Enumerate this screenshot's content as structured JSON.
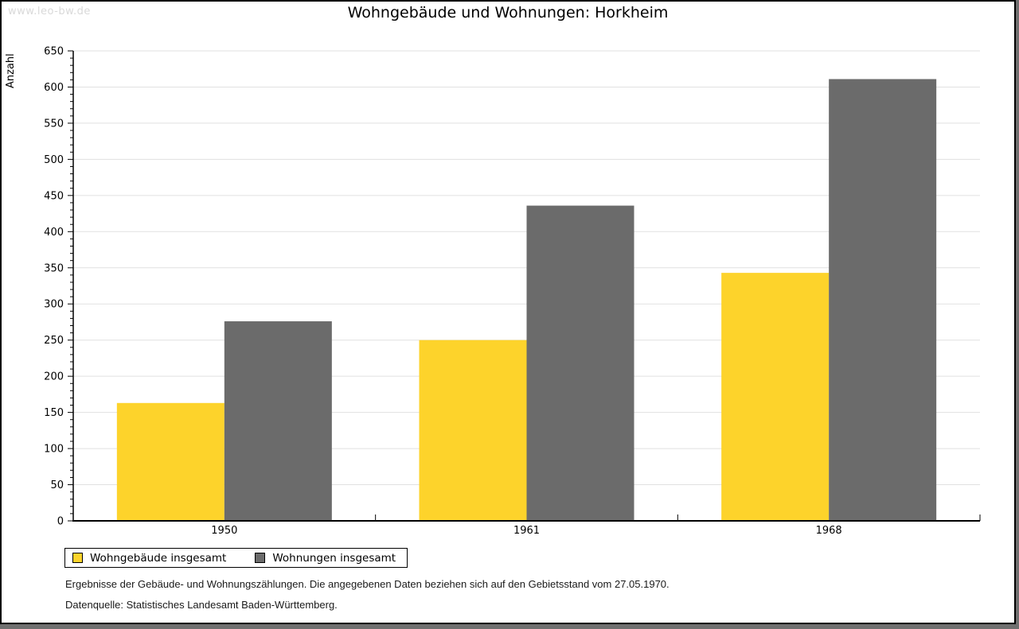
{
  "header": {
    "watermark": "www.leo-bw.de",
    "title": "Wohngebäude und Wohnungen: Horkheim"
  },
  "chart_data": {
    "type": "bar",
    "title": "Wohngebäude und Wohnungen: Horkheim",
    "categories": [
      "1950",
      "1961",
      "1968"
    ],
    "series": [
      {
        "name": "Wohngebäude insgesamt",
        "values": [
          163,
          250,
          343
        ],
        "color": "#fdd32b"
      },
      {
        "name": "Wohnungen insgesamt",
        "values": [
          276,
          436,
          611
        ],
        "color": "#6b6b6b"
      }
    ],
    "xlabel": "",
    "ylabel": "Anzahl",
    "ylim": [
      0,
      650
    ],
    "ytick_step": 50,
    "yminor_step": 10,
    "grid": true,
    "gridline_color": "#e1e1e1",
    "axis_color": "#000000",
    "legend_position": "bottom-left"
  },
  "footer": {
    "line1": "Ergebnisse der Gebäude- und Wohnungszählungen. Die angegebenen Daten beziehen sich auf den Gebietsstand vom 27.05.1970.",
    "line2": "Datenquelle: Statistisches Landesamt Baden-Württemberg."
  }
}
